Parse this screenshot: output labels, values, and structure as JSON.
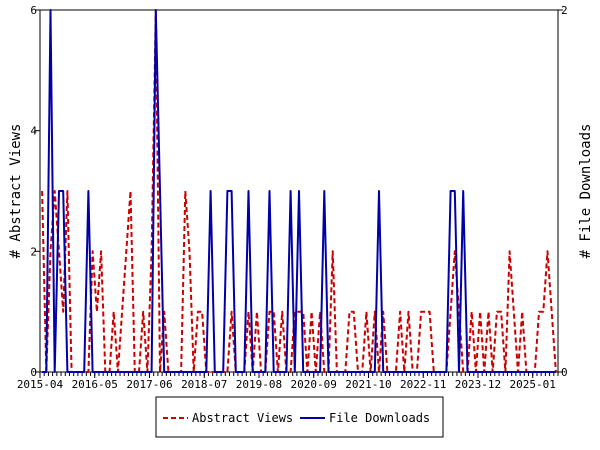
{
  "chart_data": {
    "type": "line",
    "x_tick_labels": [
      "2015-04",
      "2016-05",
      "2017-06",
      "2018-07",
      "2019-08",
      "2020-09",
      "2021-10",
      "2022-11",
      "2023-12",
      "2025-01"
    ],
    "left_axis": {
      "label": "# Abstract Views",
      "ticks": [
        "0",
        "2",
        "4",
        "6"
      ],
      "range": [
        0,
        6
      ]
    },
    "right_axis": {
      "label": "# File Downloads",
      "ticks": [
        "0",
        "2"
      ],
      "range": [
        0,
        2
      ]
    },
    "grid": false,
    "legend_position": "bottom",
    "series": [
      {
        "name": "Abstract Views",
        "axis": "left",
        "color": "#cc0000",
        "style": "dashed",
        "x_month_index": [
          0,
          1,
          2,
          3,
          4,
          5,
          6,
          7,
          8,
          9,
          10,
          11,
          12,
          13,
          14,
          15,
          16,
          17,
          18,
          19,
          20,
          21,
          22,
          23,
          24,
          25,
          26,
          27,
          28,
          29,
          30,
          31,
          32,
          33,
          34,
          35,
          36,
          37,
          38,
          39,
          40,
          41,
          42,
          43,
          44,
          45,
          46,
          47,
          48,
          49,
          50,
          51,
          52,
          53,
          54,
          55,
          56,
          57,
          58,
          59,
          60,
          61,
          62,
          63,
          64,
          65,
          66,
          67,
          68,
          69,
          70,
          71,
          72,
          73,
          74,
          75,
          76,
          77,
          78,
          79,
          80,
          81,
          82,
          83,
          84,
          85,
          86,
          87,
          88,
          89,
          90,
          91,
          92,
          93,
          94,
          95,
          96,
          97,
          98,
          99,
          100,
          101,
          102,
          103,
          104,
          105,
          106,
          107,
          108,
          109,
          110,
          111,
          112,
          113,
          114,
          115,
          116,
          117,
          118,
          119,
          120,
          121,
          122
        ],
        "values": [
          3,
          0,
          2,
          3,
          2,
          1,
          3,
          0,
          0,
          0,
          0,
          0,
          2,
          1,
          2,
          0,
          0,
          1,
          0,
          1,
          2,
          3,
          0,
          0,
          1,
          0,
          2,
          6,
          0,
          1,
          0,
          0,
          0,
          0,
          3,
          2,
          0,
          1,
          1,
          0,
          0,
          0,
          0,
          0,
          0,
          1,
          0,
          0,
          0,
          1,
          0,
          1,
          0,
          0,
          1,
          1,
          0,
          1,
          0,
          0,
          1,
          1,
          1,
          0,
          1,
          0,
          1,
          0,
          0,
          2,
          0,
          0,
          0,
          1,
          1,
          0,
          0,
          1,
          0,
          1,
          0,
          1,
          0,
          0,
          0,
          1,
          0,
          1,
          0,
          0,
          1,
          1,
          1,
          0,
          0,
          0,
          0,
          1,
          2,
          1,
          0,
          0,
          1,
          0,
          1,
          0,
          1,
          0,
          1,
          1,
          0,
          2,
          1,
          0,
          1,
          0,
          0,
          0,
          1,
          1,
          2,
          1,
          0
        ]
      },
      {
        "name": "File Downloads",
        "axis": "right",
        "color": "#0000aa",
        "style": "solid",
        "x_month_index": [
          0,
          1,
          2,
          3,
          4,
          5,
          6,
          7,
          8,
          9,
          10,
          11,
          12,
          13,
          14,
          15,
          16,
          17,
          18,
          19,
          20,
          21,
          22,
          23,
          24,
          25,
          26,
          27,
          28,
          29,
          30,
          31,
          32,
          33,
          34,
          35,
          36,
          37,
          38,
          39,
          40,
          41,
          42,
          43,
          44,
          45,
          46,
          47,
          48,
          49,
          50,
          51,
          52,
          53,
          54,
          55,
          56,
          57,
          58,
          59,
          60,
          61,
          62,
          63,
          64,
          65,
          66,
          67,
          68,
          69,
          70,
          71,
          72,
          73,
          74,
          75,
          76,
          77,
          78,
          79,
          80,
          81,
          82,
          83,
          84,
          85,
          86,
          87,
          88,
          89,
          90,
          91,
          92,
          93,
          94,
          95,
          96,
          97,
          98,
          99,
          100,
          101,
          102,
          103,
          104,
          105,
          106,
          107,
          108,
          109,
          110,
          111,
          112,
          113,
          114,
          115,
          116,
          117,
          118,
          119,
          120,
          121,
          122
        ],
        "values": [
          0,
          0,
          2,
          0,
          1,
          1,
          0,
          0,
          0,
          0,
          0,
          1,
          0,
          0,
          0,
          0,
          0,
          0,
          0,
          0,
          0,
          0,
          0,
          0,
          0,
          0,
          0,
          2,
          1,
          0,
          0,
          0,
          0,
          0,
          0,
          0,
          0,
          0,
          0,
          0,
          1,
          0,
          0,
          0,
          1,
          1,
          0,
          0,
          0,
          1,
          0,
          0,
          0,
          0,
          1,
          0,
          0,
          0,
          0,
          1,
          0,
          1,
          0,
          0,
          0,
          0,
          0,
          1,
          0,
          0,
          0,
          0,
          0,
          0,
          0,
          0,
          0,
          0,
          0,
          0,
          1,
          0,
          0,
          0,
          0,
          0,
          0,
          0,
          0,
          0,
          0,
          0,
          0,
          0,
          0,
          0,
          0,
          1,
          1,
          0,
          1,
          0,
          0,
          0,
          0,
          0,
          0,
          0,
          0,
          0,
          0,
          0,
          0,
          0,
          0,
          0,
          0,
          0,
          0,
          0,
          0,
          0,
          0
        ]
      }
    ]
  }
}
